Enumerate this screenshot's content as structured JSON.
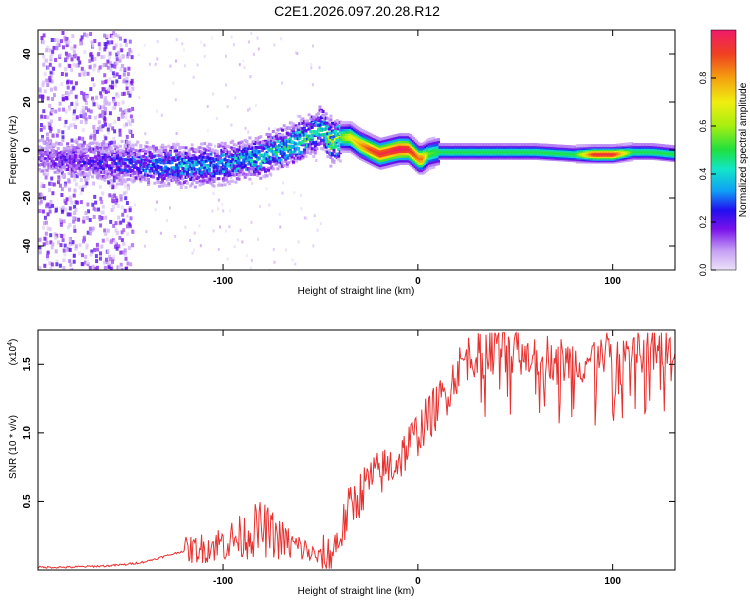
{
  "title": "C2E1.2026.097.20.28.R12",
  "colors": {
    "snr_line": "#e8312f",
    "spectrum_base": "#6a1bd6",
    "axis": "#000000"
  },
  "chart_data": [
    {
      "type": "heatmap",
      "name": "spectrogram",
      "xlabel": "Height of straight line (km)",
      "ylabel": "Frequency (Hz)",
      "xlim": [
        -195,
        132
      ],
      "ylim": [
        -50,
        50
      ],
      "x_ticks": [
        -100,
        0,
        100
      ],
      "x_tick_labels": [
        "-100",
        "0",
        "100"
      ],
      "y_ticks": [
        -40,
        -20,
        0,
        20,
        40
      ],
      "y_tick_labels": [
        "-40",
        "-20",
        "0",
        "20",
        "40"
      ],
      "ridge": {
        "x": [
          -195,
          -150,
          -120,
          -100,
          -80,
          -60,
          -50,
          -45,
          -40,
          -35,
          -30,
          -25,
          -20,
          -15,
          -10,
          -5,
          0,
          2,
          5,
          10,
          20,
          40,
          60,
          80,
          90,
          100,
          110,
          120,
          132
        ],
        "frequency": [
          -2,
          -5,
          -6,
          -5,
          -2,
          5,
          10,
          4,
          6,
          6,
          3,
          1,
          -1,
          0,
          1,
          1,
          -3,
          -3,
          -1,
          0,
          0,
          0,
          0,
          -1,
          -1,
          -1,
          0,
          0,
          -1
        ],
        "amplitude": [
          0.15,
          0.25,
          0.35,
          0.35,
          0.4,
          0.45,
          0.4,
          0.6,
          0.55,
          0.7,
          0.8,
          0.9,
          0.95,
          0.95,
          1.0,
          0.95,
          0.85,
          0.85,
          0.55,
          0.5,
          0.5,
          0.5,
          0.5,
          0.5,
          0.95,
          0.95,
          0.5,
          0.5,
          0.5
        ]
      },
      "colorbar": {
        "label": "Normalized spectral amplitude",
        "range": [
          0,
          1
        ],
        "ticks": [
          0.0,
          0.2,
          0.4,
          0.6,
          0.8
        ],
        "tick_labels": [
          "0.0",
          "0.2",
          "0.4",
          "0.6",
          "0.8"
        ]
      }
    },
    {
      "type": "line",
      "name": "snr",
      "xlabel": "Height of straight line (km)",
      "ylabel": "SNR (10 * v/v)",
      "yscale_label": "(x10",
      "yscale_exponent": "4",
      "xlim": [
        -195,
        132
      ],
      "ylim": [
        0.0,
        1.75
      ],
      "x_ticks": [
        -100,
        0,
        100
      ],
      "x_tick_labels": [
        "-100",
        "0",
        "100"
      ],
      "y_ticks": [
        0.5,
        1.0,
        1.5
      ],
      "y_tick_labels": [
        "0.5",
        "1.0",
        "1.5"
      ],
      "series": [
        {
          "name": "SNR",
          "x": [
            -195,
            -180,
            -160,
            -150,
            -140,
            -130,
            -120,
            -110,
            -105,
            -100,
            -95,
            -90,
            -85,
            -80,
            -75,
            -70,
            -65,
            -60,
            -55,
            -50,
            -45,
            -40,
            -35,
            -30,
            -25,
            -20,
            -15,
            -10,
            -5,
            0,
            5,
            10,
            15,
            20,
            25,
            30,
            35,
            40,
            50,
            60,
            70,
            80,
            90,
            100,
            110,
            120,
            132
          ],
          "values": [
            0.02,
            0.02,
            0.03,
            0.04,
            0.06,
            0.1,
            0.14,
            0.16,
            0.18,
            0.2,
            0.22,
            0.24,
            0.28,
            0.3,
            0.26,
            0.22,
            0.18,
            0.16,
            0.12,
            0.08,
            0.1,
            0.25,
            0.45,
            0.55,
            0.65,
            0.7,
            0.75,
            0.8,
            0.9,
            1.0,
            1.1,
            1.2,
            1.3,
            1.45,
            1.55,
            1.58,
            1.6,
            1.62,
            1.6,
            1.58,
            1.55,
            1.5,
            1.55,
            1.58,
            1.6,
            1.62,
            1.63
          ]
        }
      ]
    }
  ]
}
